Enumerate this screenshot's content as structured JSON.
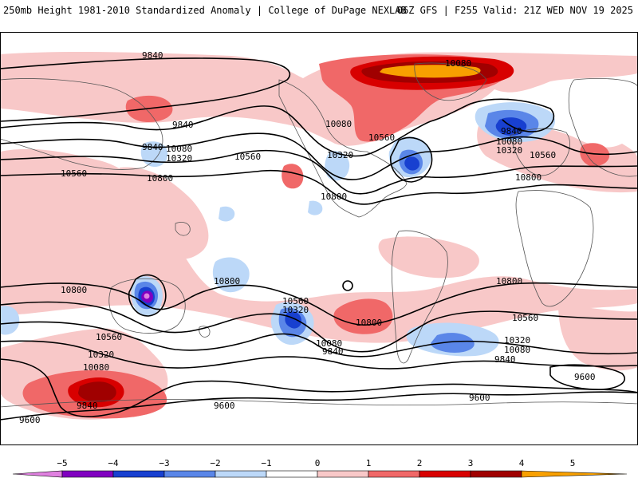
{
  "header": {
    "title": "250mb Height 1981-2010 Standardized Anomaly | College of DuPage NEXLAB",
    "run_info": "06Z GFS | F255 Valid: 21Z WED NOV 19 2025"
  },
  "colors": {
    "neg5": "#e080e0",
    "neg4": "#8000c0",
    "neg3": "#1840d0",
    "neg2": "#5a86e8",
    "neg1": "#bcd8f8",
    "zero": "#ffffff",
    "pos1": "#f8c8c8",
    "pos2": "#f06868",
    "pos3": "#d80000",
    "pos4": "#a00000",
    "pos5": "#f8a000",
    "contour": "#000000",
    "coast": "#555555"
  },
  "legend": {
    "ticks": [
      "−5",
      "−4",
      "−3",
      "−2",
      "−1",
      "0",
      "1",
      "2",
      "3",
      "4",
      "5"
    ]
  },
  "contour_labels": [
    {
      "name": "label-9840-n",
      "text": "9840"
    },
    {
      "name": "label-10080-na",
      "text": "10080"
    },
    {
      "name": "label-10320-na",
      "text": "10320"
    },
    {
      "name": "label-10560-na",
      "text": "10560"
    },
    {
      "name": "label-10800-na",
      "text": "10800"
    },
    {
      "name": "label-9840-wp",
      "text": "9840"
    },
    {
      "name": "label-10080-wp",
      "text": "10080"
    },
    {
      "name": "label-10320-wp",
      "text": "10320"
    },
    {
      "name": "label-9840-asia",
      "text": "9840"
    },
    {
      "name": "label-10560-wp",
      "text": "10560"
    },
    {
      "name": "label-10560-w",
      "text": "10560"
    },
    {
      "name": "label-10800-w",
      "text": "10800"
    },
    {
      "name": "label-9840-eu",
      "text": "9840"
    },
    {
      "name": "label-10080-eu",
      "text": "10080"
    },
    {
      "name": "label-10320-eu",
      "text": "10320"
    },
    {
      "name": "label-10560-eu",
      "text": "10560"
    },
    {
      "name": "label-10800-af",
      "text": "10800"
    },
    {
      "name": "label-10080-gr",
      "text": "10080"
    },
    {
      "name": "label-10800-au",
      "text": "10800"
    },
    {
      "name": "label-10800-sp",
      "text": "10800"
    },
    {
      "name": "label-10800-io",
      "text": "10800"
    },
    {
      "name": "label-10560-sp",
      "text": "10560"
    },
    {
      "name": "label-10320-sp",
      "text": "10320"
    },
    {
      "name": "label-10800-sa",
      "text": "10800"
    },
    {
      "name": "label-10560-sa",
      "text": "10560"
    },
    {
      "name": "label-10320-sa",
      "text": "10320"
    },
    {
      "name": "label-10080-sa",
      "text": "10080"
    },
    {
      "name": "label-9840-sa",
      "text": "9840"
    },
    {
      "name": "label-10560-sw",
      "text": "10560"
    },
    {
      "name": "label-10320-sw",
      "text": "10320"
    },
    {
      "name": "label-10080-sw",
      "text": "10080"
    },
    {
      "name": "label-9840-sw",
      "text": "9840"
    },
    {
      "name": "label-9600-sw",
      "text": "9600"
    },
    {
      "name": "label-9600-s",
      "text": "9600"
    },
    {
      "name": "label-9600-sio",
      "text": "9600"
    },
    {
      "name": "label-9600-se",
      "text": "9600"
    },
    {
      "name": "label-10080-spc",
      "text": "10080"
    },
    {
      "name": "label-9840-spc",
      "text": "9840"
    }
  ]
}
